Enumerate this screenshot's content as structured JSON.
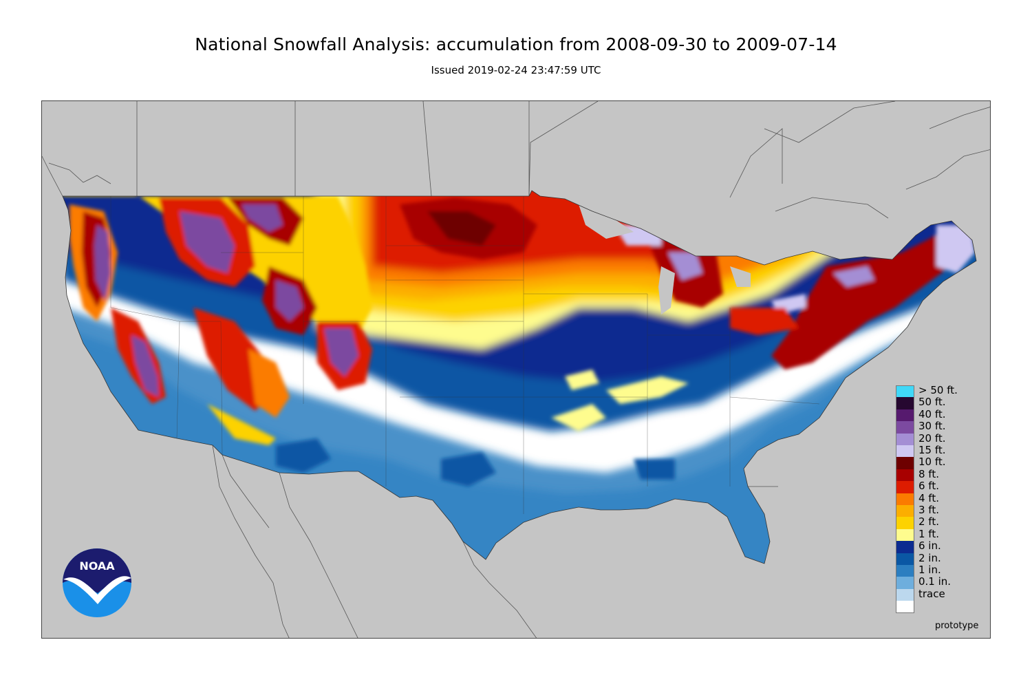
{
  "header": {
    "title": "National Snowfall Analysis: accumulation from 2008-09-30 to 2009-07-14",
    "issued": "Issued 2019-02-24 23:47:59 UTC"
  },
  "logo": {
    "text": "NOAA",
    "icon": "noaa-logo-icon"
  },
  "footer": {
    "note": "prototype"
  },
  "legend": {
    "items": [
      {
        "label": "> 50 ft.",
        "color": "#40d8f8"
      },
      {
        "label": "50 ft.",
        "color": "#260830"
      },
      {
        "label": "40 ft.",
        "color": "#561a6e"
      },
      {
        "label": "30 ft.",
        "color": "#7c4aa0"
      },
      {
        "label": "20 ft.",
        "color": "#a48ed4"
      },
      {
        "label": "15 ft.",
        "color": "#cfc8f2"
      },
      {
        "label": "10 ft.",
        "color": "#6e0000"
      },
      {
        "label": "8 ft.",
        "color": "#a80000"
      },
      {
        "label": "6 ft.",
        "color": "#dd1c00"
      },
      {
        "label": "4 ft.",
        "color": "#fb7b00"
      },
      {
        "label": "3 ft.",
        "color": "#fcae00"
      },
      {
        "label": "2 ft.",
        "color": "#fdd200"
      },
      {
        "label": "1 ft.",
        "color": "#fefc8e"
      },
      {
        "label": "6 in.",
        "color": "#0c2b90"
      },
      {
        "label": "2 in.",
        "color": "#0a57a4"
      },
      {
        "label": "1 in.",
        "color": "#2c7ec0"
      },
      {
        "label": "0.1 in.",
        "color": "#6eaedd"
      },
      {
        "label": "trace",
        "color": "#bcd8ee"
      }
    ],
    "none_color": "#ffffff"
  }
}
